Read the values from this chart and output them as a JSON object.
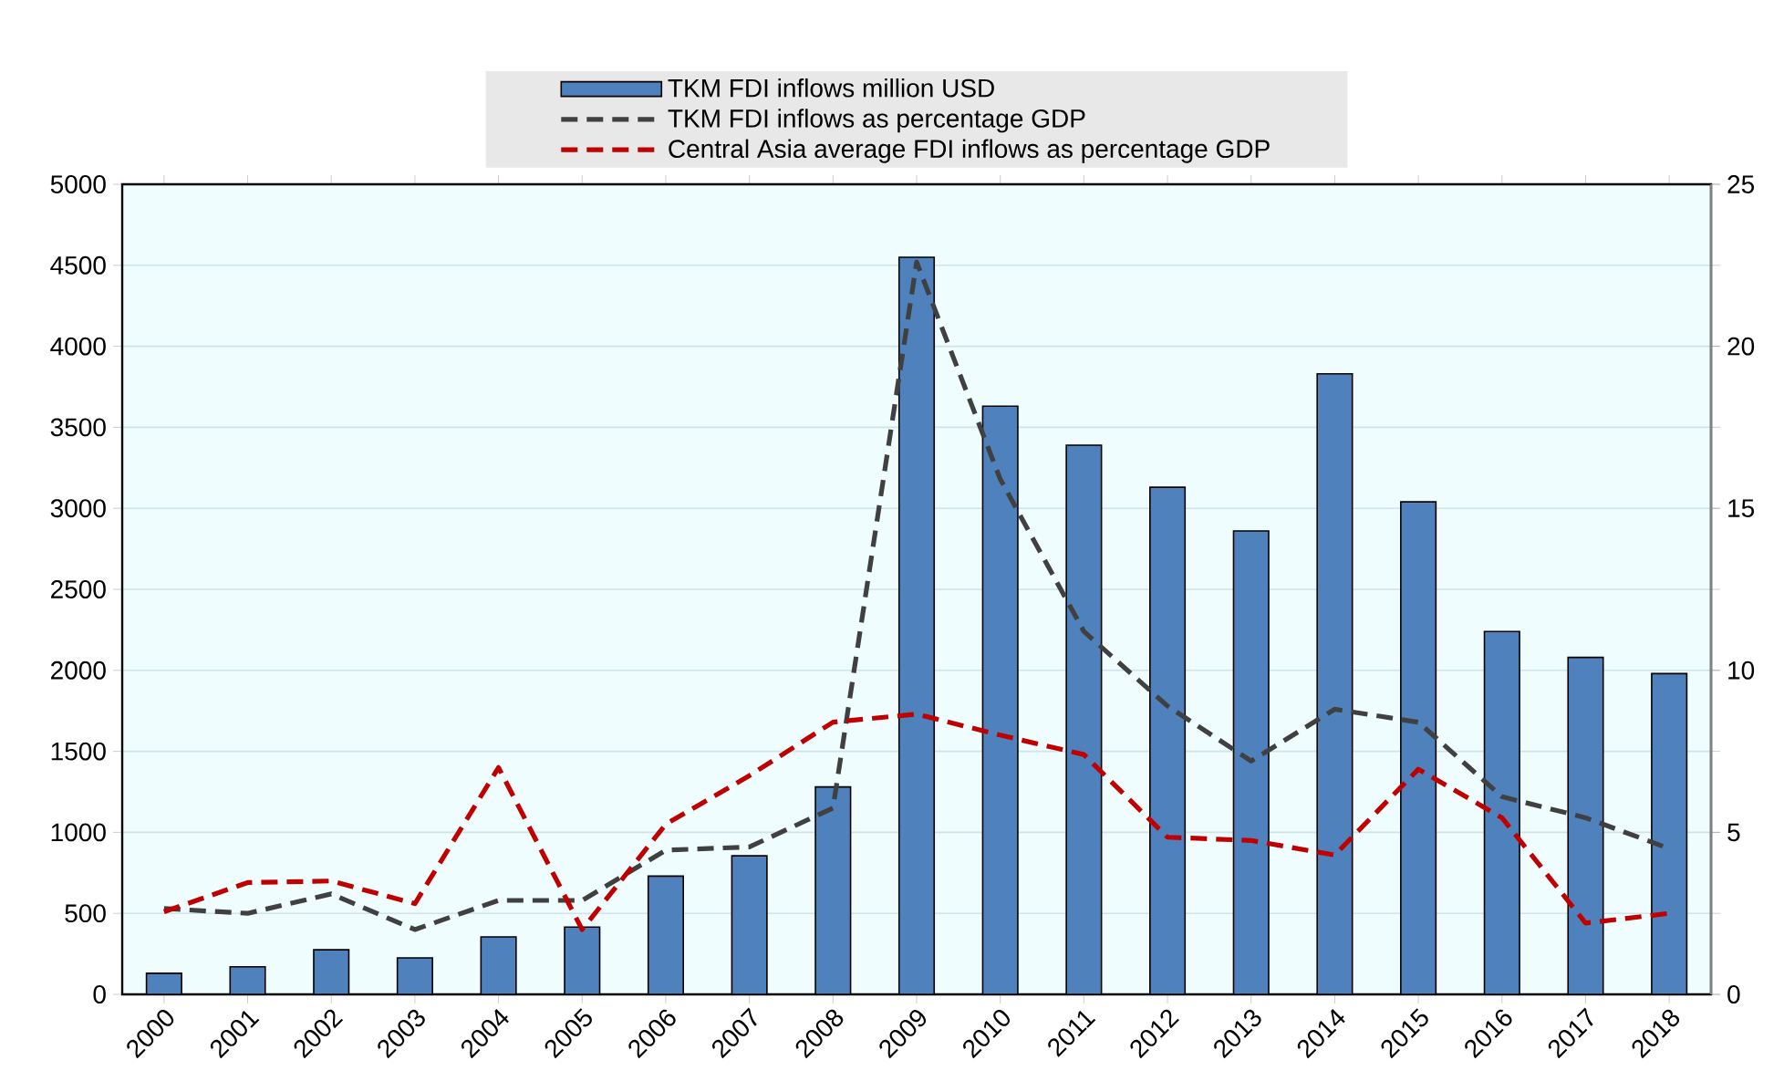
{
  "chart_data": {
    "type": "bar",
    "categories": [
      "2000",
      "2001",
      "2002",
      "2003",
      "2004",
      "2005",
      "2006",
      "2007",
      "2008",
      "2009",
      "2010",
      "2011",
      "2012",
      "2013",
      "2014",
      "2015",
      "2016",
      "2017",
      "2018"
    ],
    "series": [
      {
        "name": "TKM FDI inflows million USD",
        "color": "#4f81bd",
        "values": [
          130,
          170,
          275,
          225,
          355,
          415,
          730,
          855,
          1280,
          4550,
          3630,
          3390,
          3130,
          2860,
          3830,
          3040,
          2240,
          2080,
          1980
        ]
      },
      {
        "name": "TKM FDI inflows as percentage GDP",
        "type": "line",
        "axis": "y2",
        "color": "#404040",
        "values": [
          2.65,
          2.5,
          3.1,
          2.0,
          2.9,
          2.9,
          4.45,
          4.55,
          5.75,
          22.6,
          15.9,
          11.2,
          8.9,
          7.2,
          8.8,
          8.4,
          6.1,
          5.45,
          4.5
        ]
      },
      {
        "name": "Central Asia average FDI inflows as percentage GDP",
        "type": "line",
        "axis": "y2",
        "color": "#c00000",
        "values": [
          2.55,
          3.45,
          3.5,
          2.8,
          7.0,
          2.0,
          5.25,
          6.75,
          8.4,
          8.65,
          8.0,
          7.4,
          4.85,
          4.75,
          4.3,
          6.95,
          5.45,
          2.2,
          2.5
        ]
      }
    ],
    "ylim": [
      0,
      5000
    ],
    "yticks": [
      0,
      500,
      1000,
      1500,
      2000,
      2500,
      3000,
      3500,
      4000,
      4500,
      5000
    ],
    "y2lim": [
      0,
      25
    ],
    "y2ticks": [
      0,
      5,
      10,
      15,
      20,
      25
    ],
    "grid": "y",
    "legend": "top",
    "line_style": "dashed",
    "marker": "none"
  }
}
